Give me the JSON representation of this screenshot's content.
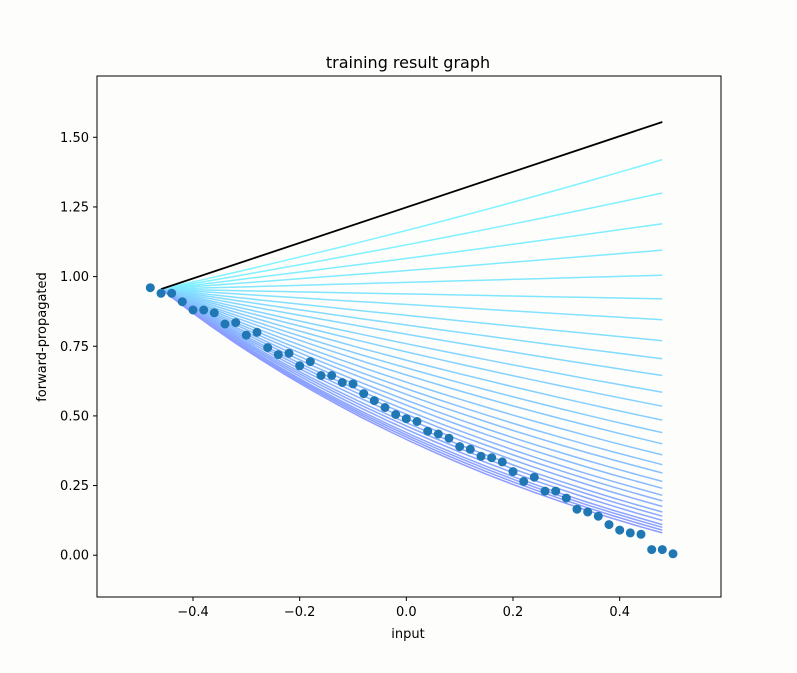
{
  "chart_data": {
    "type": "line",
    "title": "training result graph",
    "xlabel": "input",
    "ylabel": "forward-propagated",
    "xlim": [
      -0.58,
      0.59
    ],
    "ylim": [
      -0.15,
      1.72
    ],
    "xticks": [
      -0.4,
      -0.2,
      0.0,
      0.2,
      0.4
    ],
    "xtick_labels": [
      "−0.4",
      "−0.2",
      "0.0",
      "0.2",
      "0.4"
    ],
    "yticks": [
      0.0,
      0.25,
      0.5,
      0.75,
      1.0,
      1.25,
      1.5
    ],
    "ytick_labels": [
      "0.00",
      "0.25",
      "0.50",
      "0.75",
      "1.00",
      "1.25",
      "1.50"
    ],
    "grid": false,
    "colors": {
      "scatter": "#1f77b4",
      "initial_line": "#000000",
      "line_start": "#7ff4ff",
      "line_end": "#8c9bff"
    },
    "initial_line": {
      "x": [
        -0.46,
        0.48
      ],
      "y": [
        0.955,
        1.555
      ]
    },
    "training_lines": {
      "x_start": -0.46,
      "x_end": 0.48,
      "y_start": 0.955,
      "end_values": [
        1.42,
        1.3,
        1.19,
        1.095,
        1.005,
        0.92,
        0.845,
        0.77,
        0.705,
        0.645,
        0.585,
        0.535,
        0.485,
        0.44,
        0.4,
        0.36,
        0.325,
        0.295,
        0.265,
        0.24,
        0.215,
        0.195,
        0.175,
        0.155,
        0.14,
        0.125,
        0.11,
        0.1,
        0.09,
        0.08
      ]
    },
    "scatter": {
      "x": [
        -0.48,
        -0.46,
        -0.44,
        -0.42,
        -0.4,
        -0.38,
        -0.36,
        -0.34,
        -0.32,
        -0.3,
        -0.28,
        -0.26,
        -0.24,
        -0.22,
        -0.2,
        -0.18,
        -0.16,
        -0.14,
        -0.12,
        -0.1,
        -0.08,
        -0.06,
        -0.04,
        -0.02,
        0.0,
        0.02,
        0.04,
        0.06,
        0.08,
        0.1,
        0.12,
        0.14,
        0.16,
        0.18,
        0.2,
        0.22,
        0.24,
        0.26,
        0.28,
        0.3,
        0.32,
        0.34,
        0.36,
        0.38,
        0.4,
        0.42,
        0.44,
        0.46,
        0.48,
        0.5
      ],
      "y": [
        0.96,
        0.94,
        0.94,
        0.91,
        0.88,
        0.88,
        0.87,
        0.83,
        0.835,
        0.79,
        0.8,
        0.745,
        0.72,
        0.725,
        0.68,
        0.695,
        0.645,
        0.645,
        0.62,
        0.615,
        0.58,
        0.555,
        0.53,
        0.505,
        0.49,
        0.48,
        0.445,
        0.435,
        0.42,
        0.39,
        0.38,
        0.355,
        0.35,
        0.335,
        0.3,
        0.265,
        0.28,
        0.23,
        0.23,
        0.205,
        0.165,
        0.155,
        0.14,
        0.11,
        0.09,
        0.08,
        0.075,
        0.02,
        0.02,
        0.005
      ]
    }
  }
}
